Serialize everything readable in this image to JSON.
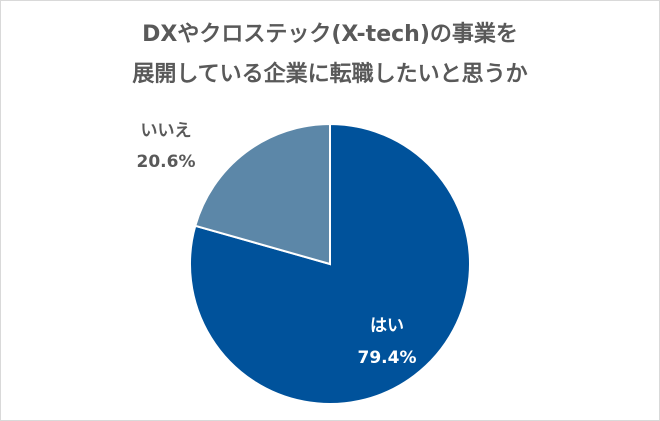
{
  "chart_data": {
    "type": "pie",
    "title_lines": [
      "DXやクロステック(X-tech)の事業を",
      "展開している企業に転職したいと思うか"
    ],
    "categories": [
      "はい",
      "いいえ"
    ],
    "values": [
      79.4,
      20.6
    ],
    "labels": [
      "79.4%",
      "20.6%"
    ],
    "colors": [
      "#00529b",
      "#5c87a8"
    ],
    "label_colors": [
      "#ffffff",
      "#595959"
    ],
    "start_angle_deg": 0,
    "direction": "clockwise"
  }
}
